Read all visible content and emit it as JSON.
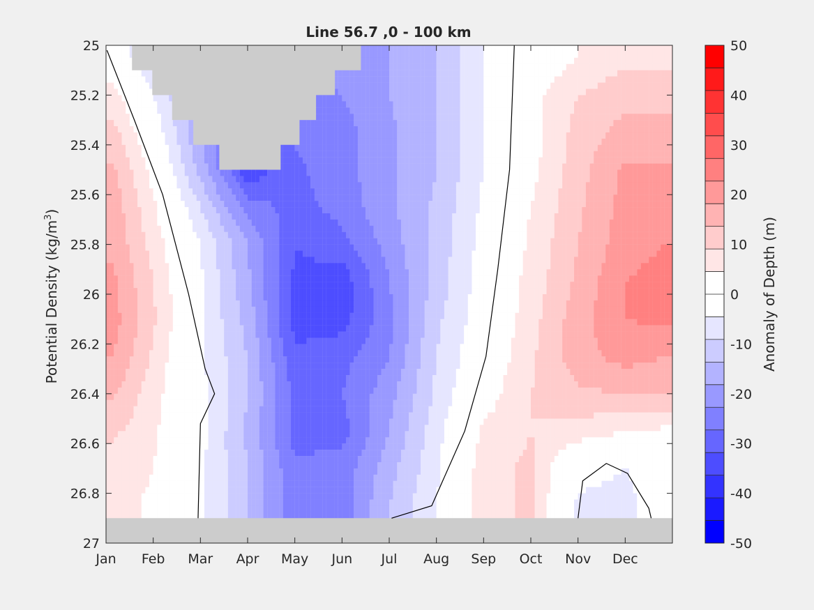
{
  "chart_data": {
    "type": "heatmap",
    "title": "Line 56.7 ,0 - 100 km",
    "ylabel": "Potential Density (kg/m",
    "ylabel_superscript": "3",
    "ylabel_suffix": ")",
    "xlim": [
      0,
      12
    ],
    "ylim": [
      25,
      27
    ],
    "y_reversed": true,
    "x_ticks": [
      {
        "x": 0,
        "label": "Jan"
      },
      {
        "x": 1,
        "label": "Feb"
      },
      {
        "x": 2,
        "label": "Mar"
      },
      {
        "x": 3,
        "label": "Apr"
      },
      {
        "x": 4,
        "label": "May"
      },
      {
        "x": 5,
        "label": "Jun"
      },
      {
        "x": 6,
        "label": "Jul"
      },
      {
        "x": 7,
        "label": "Aug"
      },
      {
        "x": 8,
        "label": "Sep"
      },
      {
        "x": 9,
        "label": "Oct"
      },
      {
        "x": 10,
        "label": "Nov"
      },
      {
        "x": 11,
        "label": "Dec"
      }
    ],
    "y_ticks": [
      {
        "y": 25,
        "label": "25"
      },
      {
        "y": 25.2,
        "label": "25.2"
      },
      {
        "y": 25.4,
        "label": "25.4"
      },
      {
        "y": 25.6,
        "label": "25.6"
      },
      {
        "y": 25.8,
        "label": "25.8"
      },
      {
        "y": 26,
        "label": "26"
      },
      {
        "y": 26.2,
        "label": "26.2"
      },
      {
        "y": 26.4,
        "label": "26.4"
      },
      {
        "y": 26.6,
        "label": "26.6"
      },
      {
        "y": 26.8,
        "label": "26.8"
      },
      {
        "y": 27,
        "label": "27"
      }
    ],
    "no_data_color": "#cccccc",
    "colorbar": {
      "label": "Anomaly of Depth (m)",
      "min": -50,
      "max": 50,
      "step": 5,
      "tick_values": [
        50,
        40,
        30,
        20,
        10,
        0,
        -10,
        -20,
        -30,
        -40,
        -50
      ],
      "tick_labels": [
        "50",
        "40",
        "30",
        "20",
        "10",
        "0",
        "-10",
        "-20",
        "-30",
        "-40",
        "-50"
      ],
      "colors": [
        "#0000ff",
        "#1a1aff",
        "#3333ff",
        "#4d4dff",
        "#6666ff",
        "#8080ff",
        "#9999ff",
        "#b3b3ff",
        "#ccccff",
        "#e6e6ff",
        "#ffffff",
        "#ffffff",
        "#ffe6e6",
        "#ffcccc",
        "#ffb3b3",
        "#ff9999",
        "#ff8080",
        "#ff6666",
        "#ff4d4d",
        "#ff3333",
        "#ff1a1a",
        "#ff0000"
      ]
    },
    "month_columns": [
      0.15,
      1.0,
      2.0,
      3.0,
      4.0,
      5.0,
      6.0,
      7.0,
      8.0,
      9.0,
      10.0,
      11.0,
      11.85
    ],
    "density_rows": [
      25.05,
      25.2,
      25.35,
      25.5,
      25.65,
      25.8,
      25.95,
      26.1,
      26.25,
      26.4,
      26.55,
      26.7,
      26.85
    ],
    "values": [
      [
        5,
        -6,
        -12,
        -25,
        -20,
        -18,
        -15,
        -10,
        0,
        5,
        10,
        14,
        14
      ],
      [
        12,
        0,
        -15,
        -25,
        -22,
        -20,
        -15,
        -10,
        0,
        8,
        15,
        18,
        18
      ],
      [
        17,
        4,
        -15,
        -30,
        -24,
        -22,
        -16,
        -10,
        0,
        8,
        17,
        22,
        22
      ],
      [
        21,
        8,
        -12,
        -34,
        -26,
        -22,
        -16,
        -10,
        0,
        8,
        18,
        26,
        26
      ],
      [
        23,
        11,
        -5,
        -22,
        -27,
        -23,
        -16,
        -9,
        1,
        10,
        19,
        27,
        28
      ],
      [
        24,
        13,
        0,
        -15,
        -30,
        -27,
        -18,
        -8,
        2,
        11,
        20,
        28,
        30
      ],
      [
        26,
        15,
        1,
        -14,
        -31,
        -33,
        -20,
        -8,
        3,
        12,
        21,
        30,
        32
      ],
      [
        27,
        16,
        1,
        -12,
        -32,
        -32,
        -22,
        -6,
        3,
        13,
        23,
        30,
        31
      ],
      [
        25,
        14,
        1,
        -10,
        -29,
        -27,
        -20,
        -5,
        5,
        14,
        23,
        27,
        25
      ],
      [
        21,
        12,
        2,
        -10,
        -26,
        -25,
        -17,
        -4,
        7,
        15,
        19,
        20,
        20
      ],
      [
        16,
        11,
        2,
        -11,
        -27,
        -27,
        -15,
        -2,
        11,
        15,
        13,
        10,
        9
      ],
      [
        13,
        10,
        1,
        -10,
        -24,
        -23,
        -12,
        -1,
        13,
        16,
        2,
        0,
        3
      ],
      [
        12,
        9,
        1,
        -10,
        -24,
        -23,
        -10,
        0,
        13,
        16,
        -1,
        -2,
        5
      ]
    ],
    "masked_regions": [
      {
        "name": "no-data-top",
        "points": [
          [
            0.55,
            25
          ],
          [
            5.4,
            25
          ],
          [
            5.4,
            25.1
          ],
          [
            4.85,
            25.1
          ],
          [
            4.85,
            25.2
          ],
          [
            4.45,
            25.2
          ],
          [
            4.45,
            25.3
          ],
          [
            4.1,
            25.3
          ],
          [
            4.1,
            25.4
          ],
          [
            3.7,
            25.4
          ],
          [
            3.7,
            25.5
          ],
          [
            2.4,
            25.5
          ],
          [
            2.4,
            25.4
          ],
          [
            1.85,
            25.4
          ],
          [
            1.85,
            25.3
          ],
          [
            1.4,
            25.3
          ],
          [
            1.4,
            25.2
          ],
          [
            0.98,
            25.2
          ],
          [
            0.98,
            25.1
          ],
          [
            0.55,
            25.1
          ]
        ]
      },
      {
        "name": "no-data-bottom",
        "points": [
          [
            0,
            26.9
          ],
          [
            12,
            26.9
          ],
          [
            12,
            27
          ],
          [
            0,
            27
          ]
        ]
      }
    ],
    "zero_contours": [
      [
        [
          0.02,
          25.02
        ],
        [
          0.6,
          25.3
        ],
        [
          1.2,
          25.6
        ],
        [
          1.75,
          26.0
        ],
        [
          2.1,
          26.3
        ],
        [
          2.3,
          26.4
        ],
        [
          2.0,
          26.52
        ],
        [
          1.95,
          26.9
        ]
      ],
      [
        [
          8.65,
          25
        ],
        [
          8.55,
          25.5
        ],
        [
          8.3,
          25.9
        ],
        [
          8.05,
          26.25
        ],
        [
          7.6,
          26.55
        ],
        [
          6.9,
          26.85
        ],
        [
          6.05,
          26.9
        ]
      ],
      [
        [
          10.0,
          26.9
        ],
        [
          10.1,
          26.75
        ],
        [
          10.6,
          26.68
        ],
        [
          11.05,
          26.72
        ],
        [
          11.5,
          26.86
        ],
        [
          11.55,
          26.9
        ]
      ]
    ]
  }
}
